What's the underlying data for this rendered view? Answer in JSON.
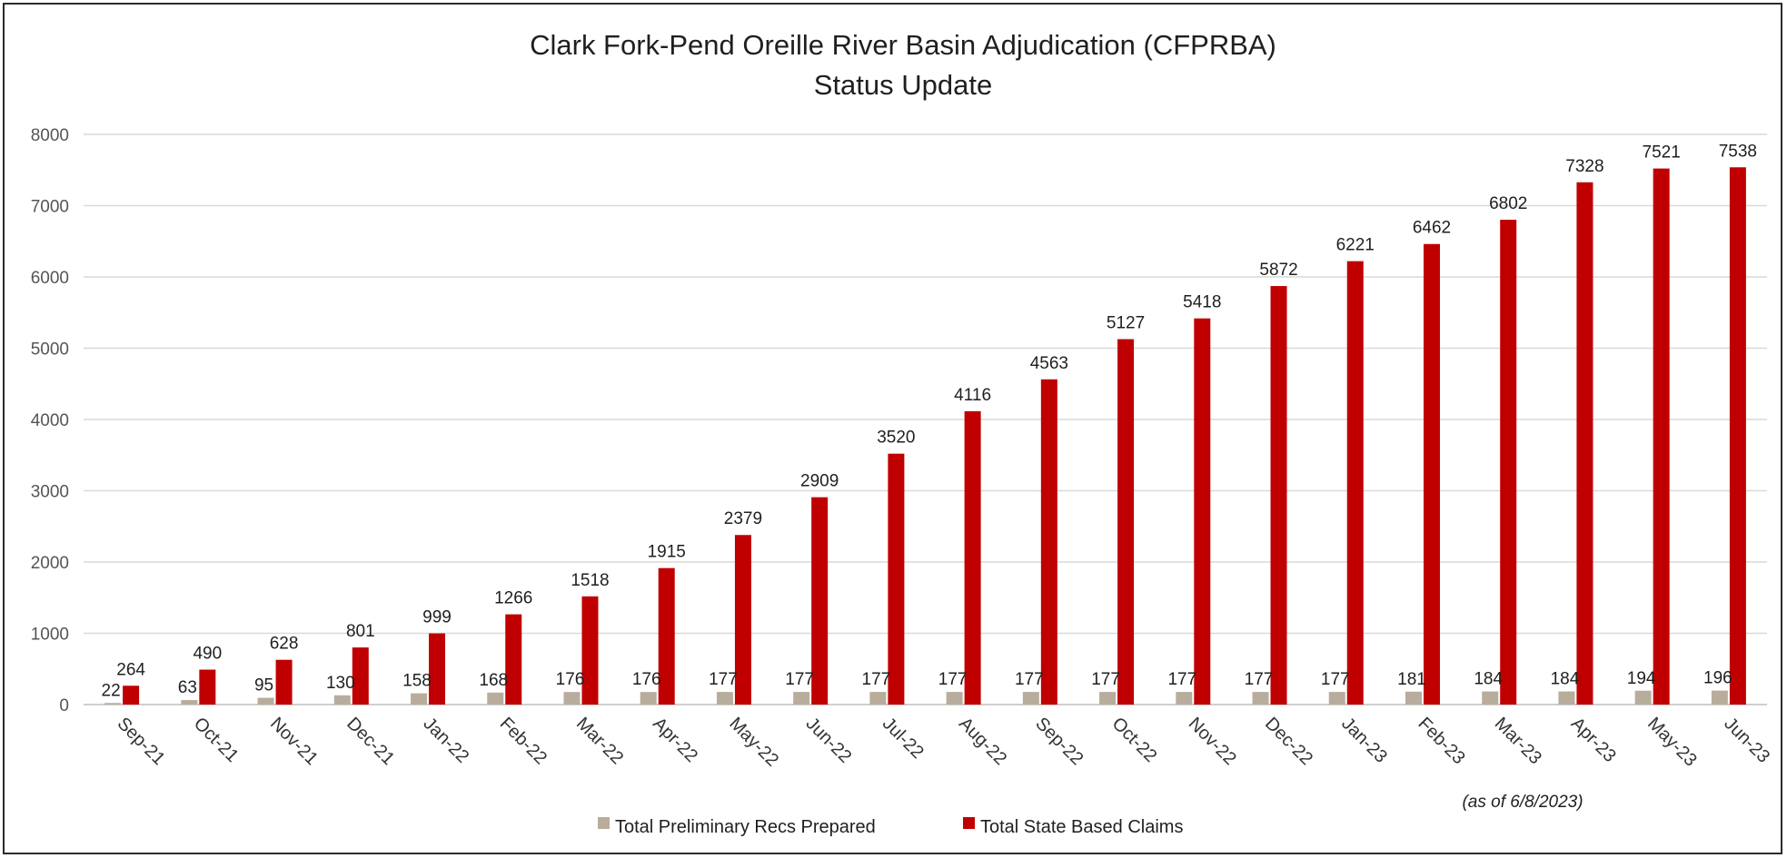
{
  "chart_data": {
    "type": "bar",
    "title": "Clark Fork-Pend Oreille River Basin Adjudication (CFPRBA)",
    "subtitle": "Status Update",
    "categories": [
      "Sep-21",
      "Oct-21",
      "Nov-21",
      "Dec-21",
      "Jan-22",
      "Feb-22",
      "Mar-22",
      "Apr-22",
      "May-22",
      "Jun-22",
      "Jul-22",
      "Aug-22",
      "Sep-22",
      "Oct-22",
      "Nov-22",
      "Dec-22",
      "Jan-23",
      "Feb-23",
      "Mar-23",
      "Apr-23",
      "May-23",
      "Jun-23"
    ],
    "series": [
      {
        "name": "Total Preliminary Recs Prepared",
        "color": "#b8ad9c",
        "values": [
          22,
          63,
          95,
          130,
          158,
          168,
          176,
          176,
          177,
          177,
          177,
          177,
          177,
          177,
          177,
          177,
          177,
          181,
          184,
          184,
          194,
          196
        ]
      },
      {
        "name": "Total State Based Claims",
        "color": "#c00000",
        "values": [
          264,
          490,
          628,
          801,
          999,
          1266,
          1518,
          1915,
          2379,
          2909,
          3520,
          4116,
          4563,
          5127,
          5418,
          5872,
          6221,
          6462,
          6802,
          7328,
          7521,
          7538
        ]
      }
    ],
    "ylim": [
      0,
      8000
    ],
    "yticks": [
      0,
      1000,
      2000,
      3000,
      4000,
      5000,
      6000,
      7000,
      8000
    ],
    "grid": true,
    "legend": "bottom",
    "annotation": "(as of 6/8/2023)"
  }
}
